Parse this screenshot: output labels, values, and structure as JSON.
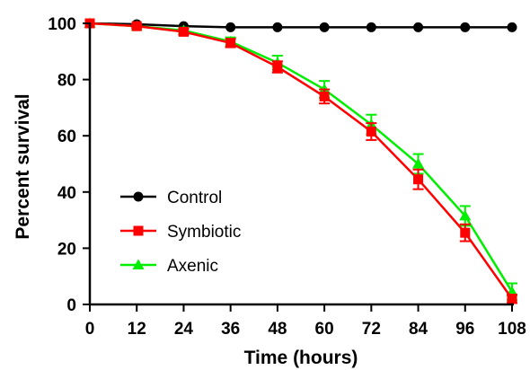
{
  "chart_data": {
    "type": "line",
    "title": "",
    "xlabel": "Time (hours)",
    "ylabel": "Percent survival",
    "xlim": [
      0,
      108
    ],
    "ylim": [
      0,
      100
    ],
    "xticks": [
      0,
      12,
      24,
      36,
      48,
      60,
      72,
      84,
      96,
      108
    ],
    "yticks": [
      0,
      20,
      40,
      60,
      80,
      100
    ],
    "grid": false,
    "legend_position": "bottom-left",
    "x": [
      0,
      12,
      24,
      36,
      48,
      60,
      72,
      84,
      96,
      108
    ],
    "series": [
      {
        "name": "Control",
        "color": "#000000",
        "marker": "circle",
        "values": [
          100,
          99.7,
          99,
          98.6,
          98.6,
          98.6,
          98.6,
          98.6,
          98.6,
          98.6
        ],
        "errors": [
          0,
          0,
          0,
          0,
          0,
          0,
          0,
          0,
          0,
          0
        ]
      },
      {
        "name": "Symbiotic",
        "color": "#ff0000",
        "marker": "square",
        "values": [
          100,
          99,
          97,
          93,
          84.5,
          74,
          61.5,
          44.5,
          25.5,
          2
        ],
        "errors": [
          0,
          0.5,
          1,
          1.5,
          2,
          2.5,
          3,
          3.5,
          3,
          1.5
        ]
      },
      {
        "name": "Axenic",
        "color": "#00ee00",
        "marker": "triangle",
        "values": [
          100,
          99,
          97.5,
          93.5,
          86,
          76.5,
          64,
          50,
          31.5,
          4.5
        ],
        "errors": [
          0,
          0.5,
          1,
          1.5,
          2.5,
          3,
          3.5,
          3.5,
          3.5,
          3
        ]
      }
    ]
  }
}
